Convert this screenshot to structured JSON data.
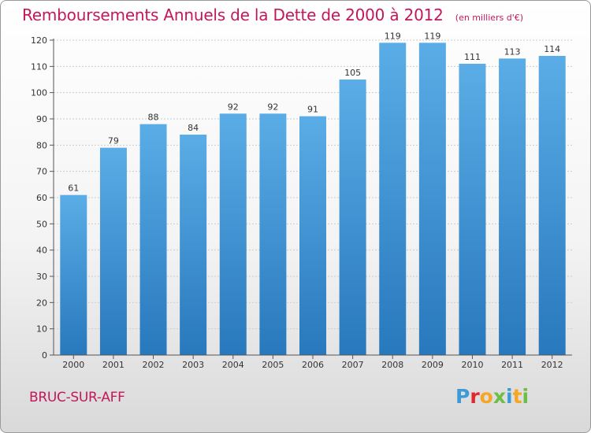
{
  "title": "Remboursements Annuels de la Dette de 2000 à 2012",
  "subtitle": "(en milliers d'€)",
  "commune": "BRUC-SUR-AFF",
  "logo": {
    "text": "Proxiti",
    "letters": [
      {
        "ch": "P",
        "color": "#3c9bd6"
      },
      {
        "ch": "r",
        "color": "#e0292e"
      },
      {
        "ch": "o",
        "color": "#f6a623"
      },
      {
        "ch": "x",
        "color": "#6cbe45"
      },
      {
        "ch": "i",
        "color": "#3c9bd6"
      },
      {
        "ch": "t",
        "color": "#f6a623"
      },
      {
        "ch": "i",
        "color": "#6cbe45"
      }
    ]
  },
  "colors": {
    "bar_top": "#5aade6",
    "bar_bottom": "#2878bd",
    "accent": "#c2185b",
    "grid": "#cccccc"
  },
  "chart_data": {
    "type": "bar",
    "categories": [
      "2000",
      "2001",
      "2002",
      "2003",
      "2004",
      "2005",
      "2006",
      "2007",
      "2008",
      "2009",
      "2010",
      "2011",
      "2012"
    ],
    "values": [
      61,
      79,
      88,
      84,
      92,
      92,
      91,
      105,
      119,
      119,
      111,
      113,
      114
    ],
    "ylim": [
      0,
      120
    ],
    "yticks": [
      0,
      10,
      20,
      30,
      40,
      50,
      60,
      70,
      80,
      90,
      100,
      110,
      120
    ],
    "grid": true
  }
}
